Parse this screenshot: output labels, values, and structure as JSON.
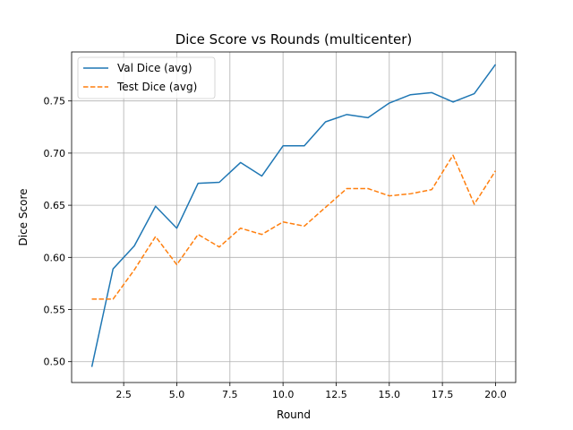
{
  "chart_data": {
    "type": "line",
    "title": "Dice Score vs Rounds (multicenter)",
    "xlabel": "Round",
    "ylabel": "Dice Score",
    "xlim": [
      0.05,
      20.95
    ],
    "ylim": [
      0.48,
      0.797
    ],
    "xticks": [
      2.5,
      5.0,
      7.5,
      10.0,
      12.5,
      15.0,
      17.5,
      20.0
    ],
    "xtick_labels": [
      "2.5",
      "5.0",
      "7.5",
      "10.0",
      "12.5",
      "15.0",
      "17.5",
      "20.0"
    ],
    "yticks": [
      0.5,
      0.55,
      0.6,
      0.65,
      0.7,
      0.75
    ],
    "ytick_labels": [
      "0.50",
      "0.55",
      "0.60",
      "0.65",
      "0.70",
      "0.75"
    ],
    "grid": true,
    "legend_position": "top-left",
    "x": [
      1,
      2,
      3,
      4,
      5,
      6,
      7,
      8,
      9,
      10,
      11,
      12,
      13,
      14,
      15,
      16,
      17,
      18,
      19,
      20
    ],
    "series": [
      {
        "name": "Val Dice (avg)",
        "color": "#1f77b4",
        "style": "solid",
        "values": [
          0.495,
          0.589,
          0.611,
          0.649,
          0.628,
          0.671,
          0.672,
          0.691,
          0.678,
          0.707,
          0.707,
          0.73,
          0.737,
          0.734,
          0.748,
          0.756,
          0.758,
          0.749,
          0.757,
          0.785
        ]
      },
      {
        "name": "Test Dice (avg)",
        "color": "#ff7f0e",
        "style": "dashed",
        "values": [
          0.56,
          0.56,
          0.588,
          0.62,
          0.593,
          0.622,
          0.61,
          0.628,
          0.622,
          0.634,
          0.63,
          0.648,
          0.666,
          0.666,
          0.659,
          0.661,
          0.665,
          0.698,
          0.651,
          0.683
        ]
      }
    ]
  }
}
